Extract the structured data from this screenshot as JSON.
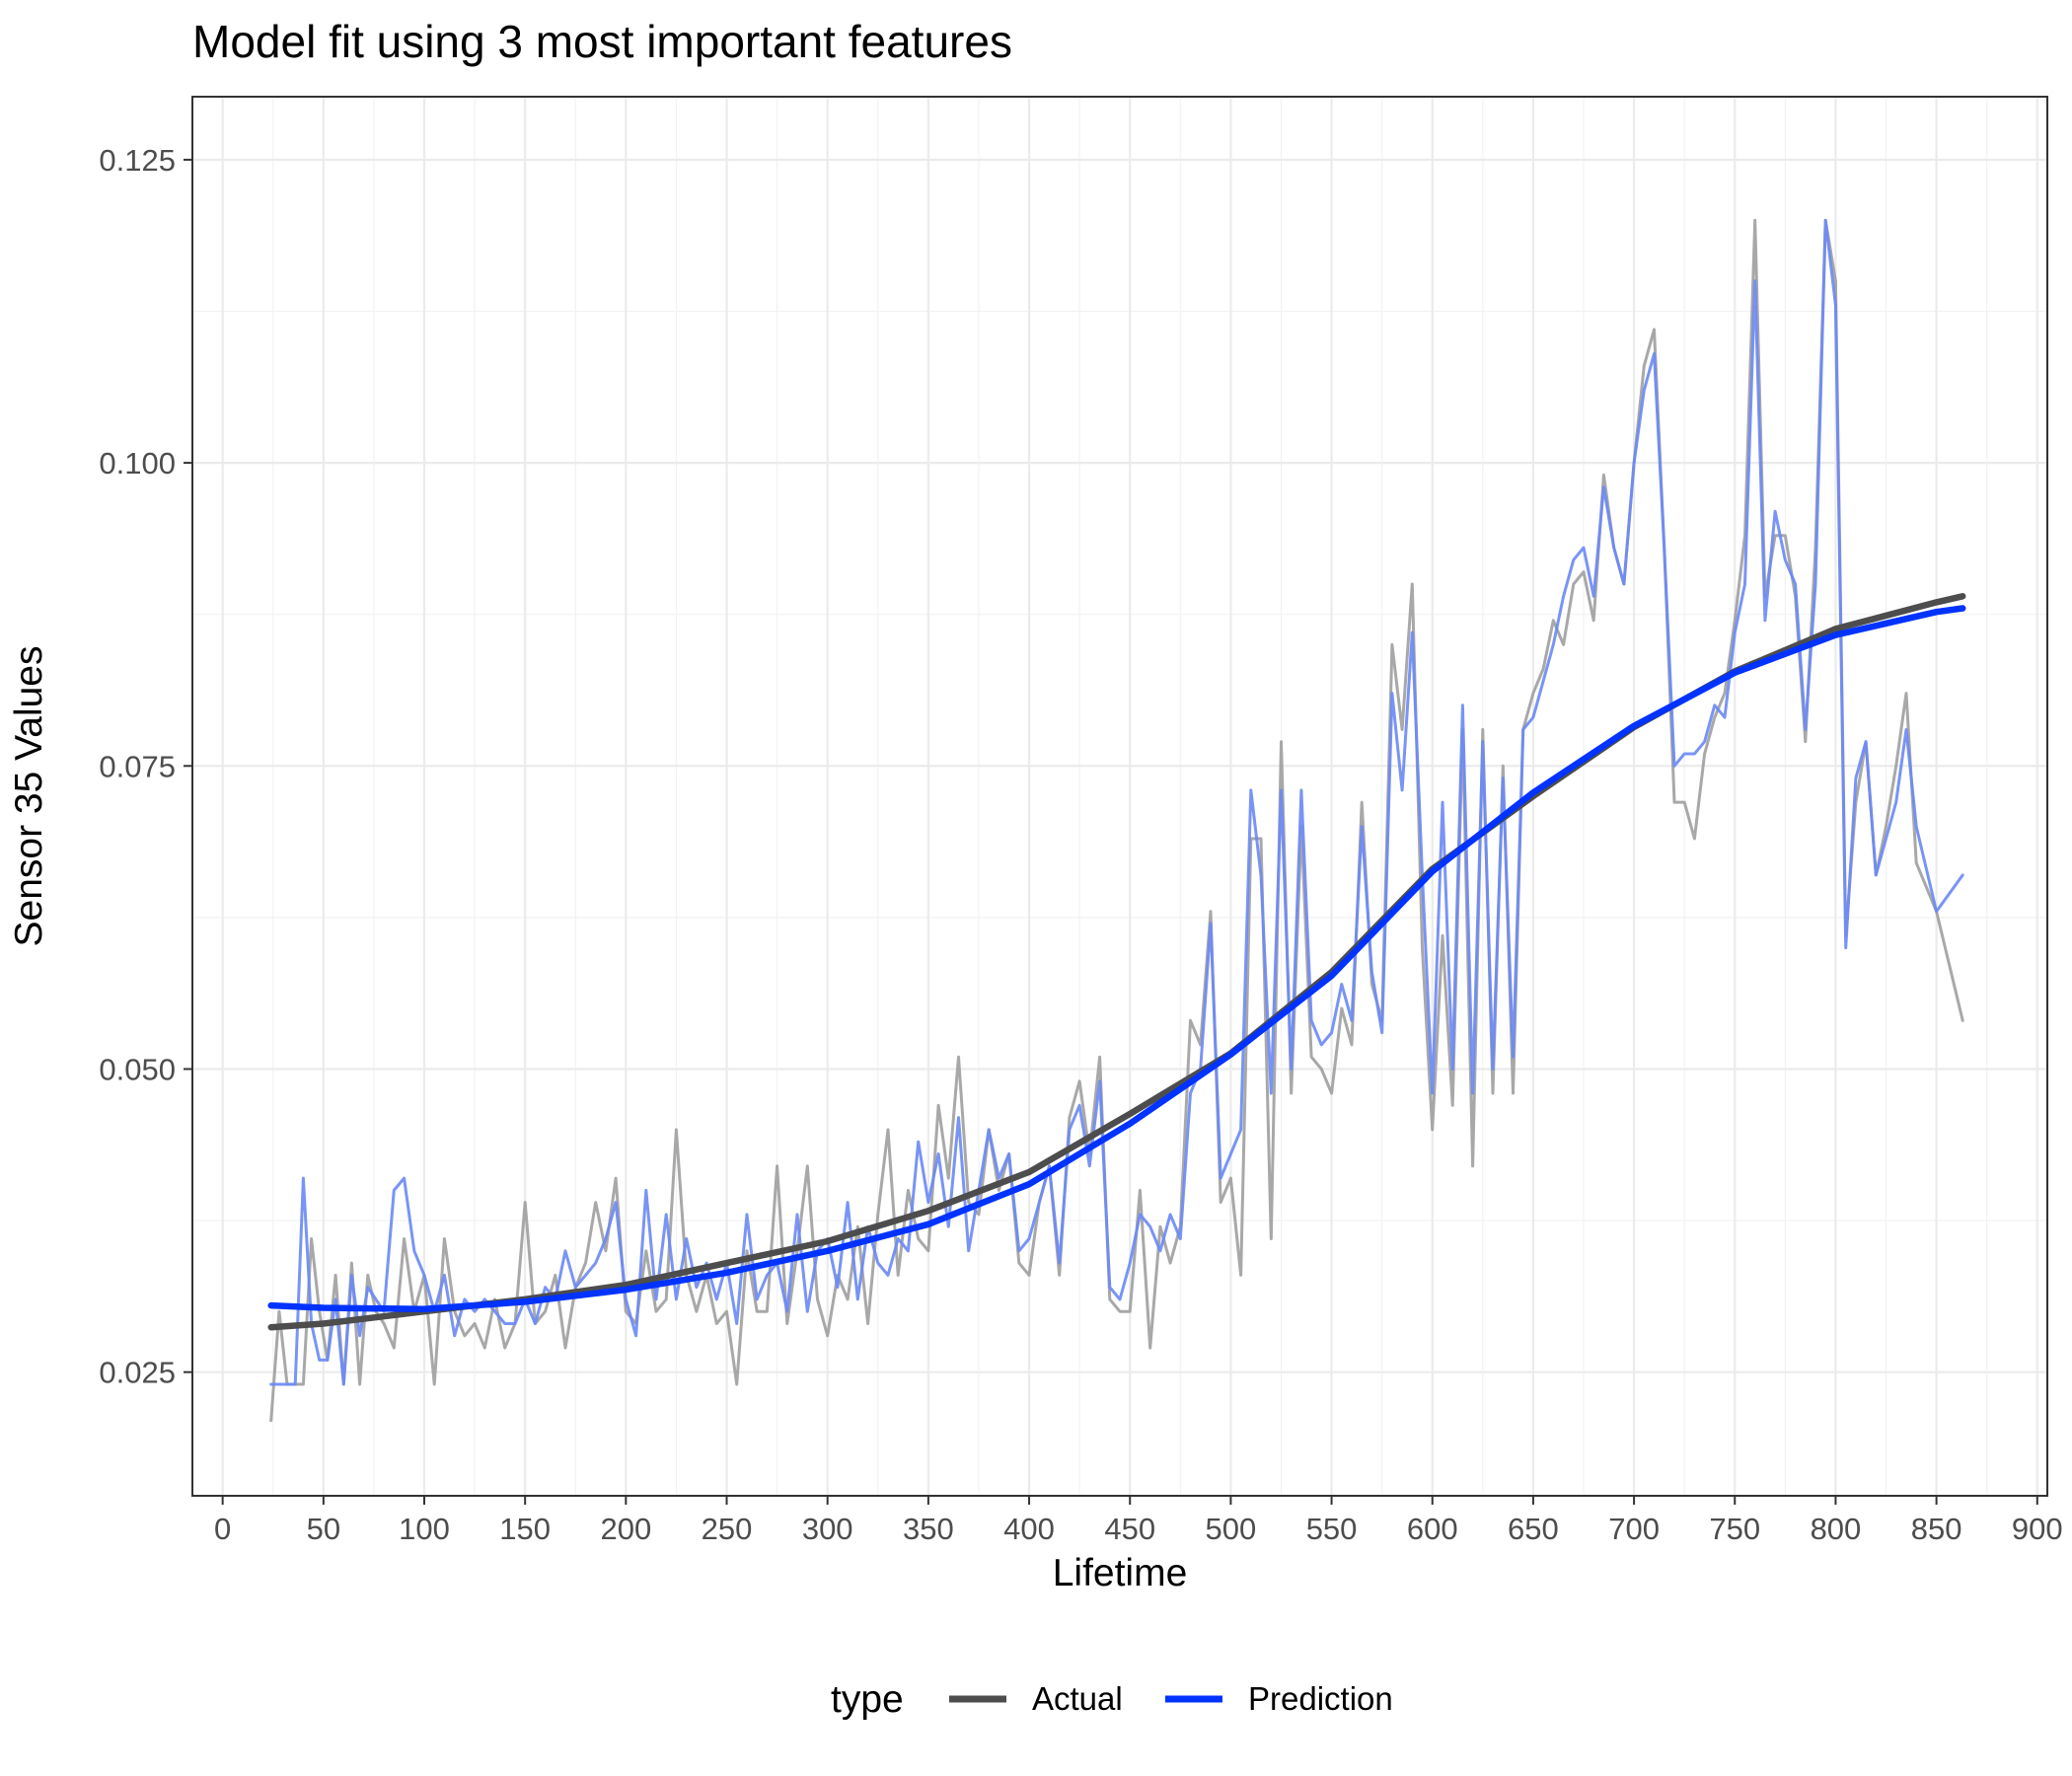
{
  "chart_data": {
    "type": "line",
    "title": "Model fit using 3 most important features",
    "xlabel": "Lifetime",
    "ylabel": "Sensor 35 Values",
    "xlim": [
      -15,
      905
    ],
    "ylim": [
      0.0148,
      0.1302
    ],
    "x_ticks": [
      0,
      50,
      100,
      150,
      200,
      250,
      300,
      350,
      400,
      450,
      500,
      550,
      600,
      650,
      700,
      750,
      800,
      850,
      900
    ],
    "x_tick_labels": [
      "0",
      "50",
      "100",
      "150",
      "200",
      "250",
      "300",
      "350",
      "400",
      "450",
      "500",
      "550",
      "600",
      "650",
      "700",
      "750",
      "800",
      "850",
      "900"
    ],
    "y_ticks": [
      0.025,
      0.05,
      0.075,
      0.1,
      0.125
    ],
    "y_tick_labels": [
      "0.025",
      "0.050",
      "0.075",
      "0.100",
      "0.125"
    ],
    "grid": true,
    "legend": {
      "position": "bottom",
      "title": "type",
      "entries": [
        {
          "label": "Actual",
          "color": "#4d4d4d"
        },
        {
          "label": "Prediction",
          "color": "#0033ff"
        }
      ]
    },
    "series": [
      {
        "name": "Actual",
        "kind": "raw",
        "color": "#9e9e9e",
        "x": [
          24,
          28,
          32,
          36,
          40,
          44,
          48,
          52,
          56,
          60,
          64,
          68,
          72,
          76,
          80,
          85,
          90,
          95,
          100,
          105,
          110,
          115,
          120,
          125,
          130,
          135,
          140,
          145,
          150,
          155,
          160,
          165,
          170,
          175,
          180,
          185,
          190,
          195,
          200,
          205,
          210,
          215,
          220,
          225,
          230,
          235,
          240,
          245,
          250,
          255,
          260,
          265,
          270,
          275,
          280,
          285,
          290,
          295,
          300,
          305,
          310,
          315,
          320,
          325,
          330,
          335,
          340,
          345,
          350,
          355,
          360,
          365,
          370,
          375,
          380,
          385,
          390,
          395,
          400,
          405,
          410,
          415,
          420,
          425,
          430,
          435,
          440,
          445,
          450,
          455,
          460,
          465,
          470,
          475,
          480,
          485,
          490,
          495,
          500,
          505,
          510,
          515,
          520,
          525,
          530,
          535,
          540,
          545,
          550,
          555,
          560,
          565,
          570,
          575,
          580,
          585,
          590,
          595,
          600,
          605,
          610,
          615,
          620,
          625,
          630,
          635,
          640,
          645,
          650,
          655,
          660,
          665,
          670,
          675,
          680,
          685,
          690,
          695,
          700,
          705,
          710,
          715,
          720,
          725,
          730,
          735,
          740,
          745,
          750,
          755,
          760,
          765,
          770,
          775,
          780,
          785,
          790,
          795,
          800,
          805,
          810,
          815,
          820,
          825,
          830,
          835,
          840,
          850,
          863
        ],
        "y": [
          0.021,
          0.03,
          0.024,
          0.024,
          0.024,
          0.036,
          0.03,
          0.026,
          0.033,
          0.024,
          0.034,
          0.024,
          0.033,
          0.03,
          0.029,
          0.027,
          0.036,
          0.03,
          0.033,
          0.024,
          0.036,
          0.03,
          0.028,
          0.029,
          0.027,
          0.031,
          0.027,
          0.029,
          0.039,
          0.029,
          0.03,
          0.033,
          0.027,
          0.032,
          0.034,
          0.039,
          0.035,
          0.041,
          0.03,
          0.029,
          0.035,
          0.03,
          0.031,
          0.045,
          0.033,
          0.03,
          0.033,
          0.029,
          0.03,
          0.024,
          0.035,
          0.03,
          0.03,
          0.042,
          0.029,
          0.035,
          0.042,
          0.031,
          0.028,
          0.033,
          0.031,
          0.037,
          0.029,
          0.038,
          0.045,
          0.033,
          0.04,
          0.036,
          0.035,
          0.047,
          0.041,
          0.051,
          0.039,
          0.038,
          0.045,
          0.04,
          0.043,
          0.034,
          0.033,
          0.039,
          0.042,
          0.033,
          0.046,
          0.049,
          0.043,
          0.051,
          0.031,
          0.03,
          0.03,
          0.04,
          0.027,
          0.037,
          0.034,
          0.037,
          0.054,
          0.052,
          0.063,
          0.039,
          0.041,
          0.033,
          0.069,
          0.069,
          0.036,
          0.077,
          0.048,
          0.07,
          0.051,
          0.05,
          0.048,
          0.055,
          0.052,
          0.072,
          0.057,
          0.054,
          0.085,
          0.078,
          0.09,
          0.06,
          0.045,
          0.061,
          0.047,
          0.078,
          0.042,
          0.078,
          0.048,
          0.075,
          0.048,
          0.078,
          0.081,
          0.083,
          0.087,
          0.085,
          0.09,
          0.091,
          0.087,
          0.099,
          0.093,
          0.09,
          0.1,
          0.108,
          0.111,
          0.093,
          0.072,
          0.072,
          0.069,
          0.076,
          0.079,
          0.081,
          0.087,
          0.094,
          0.12,
          0.089,
          0.094,
          0.094,
          0.089,
          0.077,
          0.093,
          0.12,
          0.115,
          0.061,
          0.072,
          0.077,
          0.066,
          0.07,
          0.075,
          0.081,
          0.067,
          0.063,
          0.054
        ]
      },
      {
        "name": "Prediction",
        "kind": "raw",
        "color": "#6a88f5",
        "x": [
          24,
          28,
          32,
          36,
          40,
          44,
          48,
          52,
          56,
          60,
          64,
          68,
          72,
          76,
          80,
          85,
          90,
          95,
          100,
          105,
          110,
          115,
          120,
          125,
          130,
          135,
          140,
          145,
          150,
          155,
          160,
          165,
          170,
          175,
          180,
          185,
          190,
          195,
          200,
          205,
          210,
          215,
          220,
          225,
          230,
          235,
          240,
          245,
          250,
          255,
          260,
          265,
          270,
          275,
          280,
          285,
          290,
          295,
          300,
          305,
          310,
          315,
          320,
          325,
          330,
          335,
          340,
          345,
          350,
          355,
          360,
          365,
          370,
          375,
          380,
          385,
          390,
          395,
          400,
          405,
          410,
          415,
          420,
          425,
          430,
          435,
          440,
          445,
          450,
          455,
          460,
          465,
          470,
          475,
          480,
          485,
          490,
          495,
          500,
          505,
          510,
          515,
          520,
          525,
          530,
          535,
          540,
          545,
          550,
          555,
          560,
          565,
          570,
          575,
          580,
          585,
          590,
          595,
          600,
          605,
          610,
          615,
          620,
          625,
          630,
          635,
          640,
          645,
          650,
          655,
          660,
          665,
          670,
          675,
          680,
          685,
          690,
          695,
          700,
          705,
          710,
          715,
          720,
          725,
          730,
          735,
          740,
          745,
          750,
          755,
          760,
          765,
          770,
          775,
          780,
          785,
          790,
          795,
          800,
          805,
          810,
          815,
          820,
          825,
          830,
          835,
          840,
          850,
          863
        ],
        "y": [
          0.024,
          0.024,
          0.024,
          0.024,
          0.041,
          0.029,
          0.026,
          0.026,
          0.031,
          0.024,
          0.033,
          0.028,
          0.032,
          0.031,
          0.03,
          0.04,
          0.041,
          0.035,
          0.033,
          0.03,
          0.033,
          0.028,
          0.031,
          0.03,
          0.031,
          0.03,
          0.029,
          0.029,
          0.031,
          0.029,
          0.032,
          0.031,
          0.035,
          0.032,
          0.033,
          0.034,
          0.036,
          0.039,
          0.031,
          0.028,
          0.04,
          0.031,
          0.038,
          0.031,
          0.036,
          0.032,
          0.034,
          0.031,
          0.034,
          0.029,
          0.038,
          0.031,
          0.033,
          0.034,
          0.03,
          0.038,
          0.03,
          0.035,
          0.036,
          0.032,
          0.039,
          0.031,
          0.037,
          0.034,
          0.033,
          0.036,
          0.035,
          0.044,
          0.039,
          0.043,
          0.037,
          0.046,
          0.035,
          0.04,
          0.045,
          0.041,
          0.043,
          0.035,
          0.036,
          0.039,
          0.042,
          0.034,
          0.045,
          0.047,
          0.042,
          0.049,
          0.032,
          0.031,
          0.034,
          0.038,
          0.037,
          0.035,
          0.038,
          0.036,
          0.048,
          0.05,
          0.062,
          0.041,
          0.043,
          0.045,
          0.073,
          0.066,
          0.048,
          0.073,
          0.05,
          0.073,
          0.054,
          0.052,
          0.053,
          0.057,
          0.054,
          0.07,
          0.058,
          0.053,
          0.081,
          0.073,
          0.086,
          0.066,
          0.048,
          0.072,
          0.05,
          0.08,
          0.048,
          0.077,
          0.05,
          0.074,
          0.051,
          0.078,
          0.079,
          0.082,
          0.085,
          0.089,
          0.092,
          0.093,
          0.089,
          0.098,
          0.093,
          0.09,
          0.1,
          0.106,
          0.109,
          0.093,
          0.075,
          0.076,
          0.076,
          0.077,
          0.08,
          0.079,
          0.086,
          0.09,
          0.115,
          0.087,
          0.096,
          0.092,
          0.09,
          0.078,
          0.09,
          0.12,
          0.113,
          0.06,
          0.074,
          0.077,
          0.066,
          0.069,
          0.072,
          0.078,
          0.07,
          0.063,
          0.066
        ]
      },
      {
        "name": "Actual",
        "kind": "smooth",
        "color": "#4d4d4d",
        "x": [
          24,
          50,
          100,
          150,
          200,
          250,
          300,
          350,
          400,
          450,
          500,
          550,
          600,
          650,
          700,
          750,
          800,
          850,
          863
        ],
        "y": [
          0.0287,
          0.029,
          0.03,
          0.031,
          0.0322,
          0.034,
          0.0358,
          0.0383,
          0.0415,
          0.0463,
          0.0513,
          0.058,
          0.0665,
          0.0725,
          0.0782,
          0.0828,
          0.0863,
          0.0885,
          0.089
        ]
      },
      {
        "name": "Prediction",
        "kind": "smooth",
        "color": "#0033ff",
        "x": [
          24,
          50,
          100,
          150,
          200,
          250,
          300,
          350,
          400,
          450,
          500,
          550,
          600,
          650,
          700,
          750,
          800,
          850,
          863
        ],
        "y": [
          0.0305,
          0.0303,
          0.0302,
          0.0308,
          0.0318,
          0.0332,
          0.035,
          0.0372,
          0.0405,
          0.0455,
          0.0512,
          0.0577,
          0.0663,
          0.0728,
          0.0783,
          0.0827,
          0.0858,
          0.0877,
          0.088
        ]
      }
    ]
  }
}
